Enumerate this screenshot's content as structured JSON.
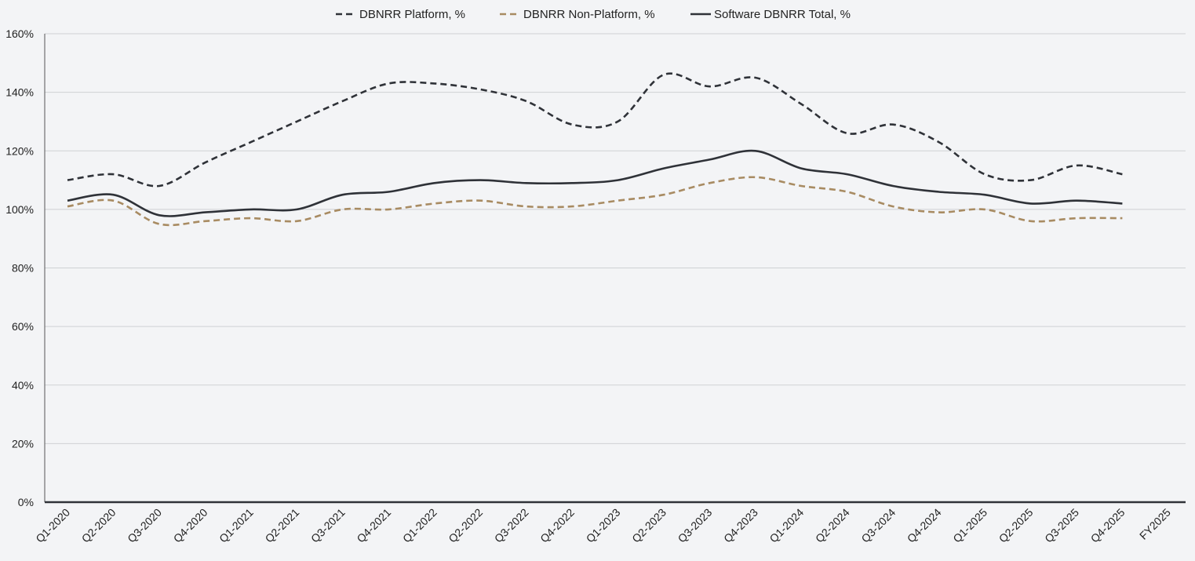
{
  "chart_data": {
    "type": "line",
    "categories": [
      "Q1-2020",
      "Q2-2020",
      "Q3-2020",
      "Q4-2020",
      "Q1-2021",
      "Q2-2021",
      "Q3-2021",
      "Q4-2021",
      "Q1-2022",
      "Q2-2022",
      "Q3-2022",
      "Q4-2022",
      "Q1-2023",
      "Q2-2023",
      "Q3-2023",
      "Q4-2023",
      "Q1-2024",
      "Q2-2024",
      "Q3-2024",
      "Q4-2024",
      "Q1-2025",
      "Q2-2025",
      "Q3-2025",
      "Q4-2025",
      "FY2025"
    ],
    "series": [
      {
        "name": "DBNRR Platform, %",
        "style": "dashed",
        "color": "#2f3238",
        "values": [
          110,
          112,
          108,
          116,
          123,
          130,
          137,
          143,
          143,
          141,
          137,
          129,
          130,
          146,
          142,
          145,
          136,
          126,
          129,
          123,
          112,
          110,
          115,
          112,
          null
        ]
      },
      {
        "name": "DBNRR Non-Platform, %",
        "style": "dashed",
        "color": "#a88b62",
        "values": [
          101,
          103,
          95,
          96,
          97,
          96,
          100,
          100,
          102,
          103,
          101,
          101,
          103,
          105,
          109,
          111,
          108,
          106,
          101,
          99,
          100,
          96,
          97,
          97,
          null
        ]
      },
      {
        "name": "Software DBNRR Total, %",
        "style": "solid",
        "color": "#2f3238",
        "values": [
          103,
          105,
          98,
          99,
          100,
          100,
          105,
          106,
          109,
          110,
          109,
          109,
          110,
          114,
          117,
          120,
          114,
          112,
          108,
          106,
          105,
          102,
          103,
          102,
          null
        ]
      }
    ],
    "y_ticks": [
      "0%",
      "20%",
      "40%",
      "60%",
      "80%",
      "100%",
      "120%",
      "140%",
      "160%"
    ],
    "ylim": [
      0,
      160
    ],
    "grid": true,
    "legend_position": "top-center"
  }
}
